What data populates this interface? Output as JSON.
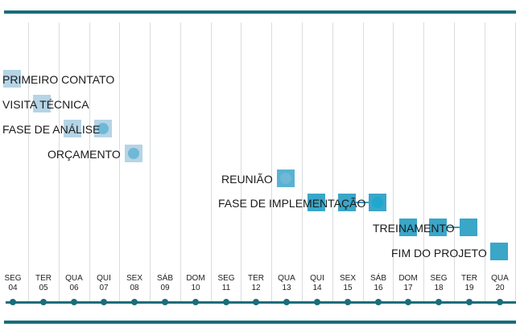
{
  "colors": {
    "band": "#1a6d7a",
    "light_box": "#a8cde0",
    "dark_box": "#1796be"
  },
  "days": [
    {
      "dow": "SEG",
      "num": "04"
    },
    {
      "dow": "TER",
      "num": "05"
    },
    {
      "dow": "QUA",
      "num": "06"
    },
    {
      "dow": "QUI",
      "num": "07"
    },
    {
      "dow": "SEX",
      "num": "08"
    },
    {
      "dow": "SÁB",
      "num": "09"
    },
    {
      "dow": "DOM",
      "num": "10"
    },
    {
      "dow": "SEG",
      "num": "11"
    },
    {
      "dow": "TER",
      "num": "12"
    },
    {
      "dow": "QUA",
      "num": "13"
    },
    {
      "dow": "QUI",
      "num": "14"
    },
    {
      "dow": "SEX",
      "num": "15"
    },
    {
      "dow": "SÁB",
      "num": "16"
    },
    {
      "dow": "DOM",
      "num": "17"
    },
    {
      "dow": "SEG",
      "num": "18"
    },
    {
      "dow": "TER",
      "num": "19"
    },
    {
      "dow": "QUA",
      "num": "20"
    }
  ],
  "tasks": [
    {
      "label": "PRIMEIRO CONTATO"
    },
    {
      "label": "VISITA TÉCNICA"
    },
    {
      "label": "FASE DE ANÁLISE"
    },
    {
      "label": "ORÇAMENTO"
    },
    {
      "label": "REUNIÃO"
    },
    {
      "label": "FASE DE IMPLEMENTAÇÃO"
    },
    {
      "label": "TREINAMENTO"
    },
    {
      "label": "FIM DO PROJETO"
    }
  ]
}
